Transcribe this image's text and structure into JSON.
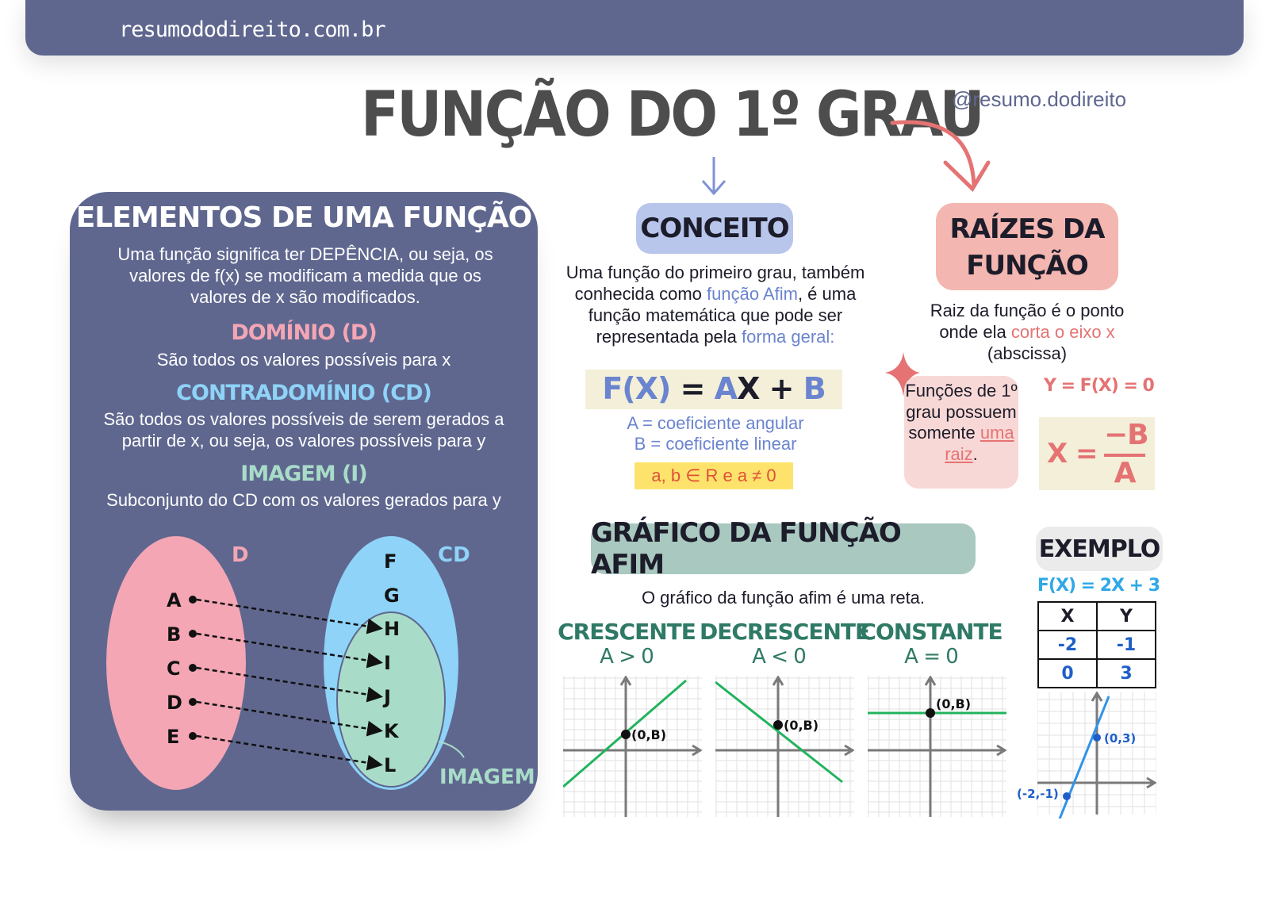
{
  "header": {
    "site": "resumododireito.com.br",
    "title": "FUNÇÃO DO 1º GRAU",
    "handle": "@resumo.dodireito"
  },
  "elementos": {
    "title": "ELEMENTOS DE UMA FUNÇÃO",
    "intro": "Uma função significa ter DEPÊNCIA, ou seja, os valores de f(x) se modificam a medida que os valores de x são modificados.",
    "dominio_title": "DOMÍNIO (D)",
    "dominio_text": "São todos os valores possíveis para x",
    "contra_title": "CONTRADOMÍNIO (CD)",
    "contra_text": "São todos os valores possíveis de serem gerados a partir de x, ou seja, os valores possíveis para y",
    "imagem_title": "IMAGEM (I)",
    "imagem_text": "Subconjunto do CD com os valores gerados para y",
    "diagram": {
      "d_label": "D",
      "cd_label": "CD",
      "imagem_label": "IMAGEM",
      "domain_items": [
        "A",
        "B",
        "C",
        "D",
        "E"
      ],
      "codomain_extra": [
        "F",
        "G"
      ],
      "image_items": [
        "H",
        "I",
        "J",
        "K",
        "L"
      ]
    }
  },
  "conceito": {
    "title": "CONCEITO",
    "text1": "Uma função do primeiro grau, também conhecida como ",
    "highlight1": "função Afim",
    "text2": ", é uma função matemática que pode ser representada pela ",
    "highlight2": "forma geral:",
    "formula": {
      "fx": "F(X)",
      "eq": "=",
      "a": "A",
      "x": "X",
      "plus": "+",
      "b": "B"
    },
    "coef_a": "A = coeficiente angular",
    "coef_b": "B = coeficiente linear",
    "condition": "a, b ∈ R e a ≠ 0"
  },
  "raizes": {
    "title_line1": "RAÍZES DA",
    "title_line2": "FUNÇÃO",
    "text1": "Raiz da função é o ponto onde ela ",
    "highlight": "corta o eixo x",
    "text2": " (abscissa)",
    "note1": "Funções de 1º grau possuem somente ",
    "note_link": "uma raiz",
    "note_end": ".",
    "eq1": "Y = F(X) = 0",
    "eq2_lhs": "X =",
    "eq2_num": "−B",
    "eq2_den": "A"
  },
  "grafico": {
    "title": "GRÁFICO DA FUNÇÃO AFIM",
    "subtitle": "O gráfico da função afim é uma reta.",
    "cases": [
      {
        "name": "CRESCENTE",
        "cond": "A > 0",
        "point": "(0,B)",
        "slope": "positive"
      },
      {
        "name": "DECRESCENTE",
        "cond": "A < 0",
        "point": "(0,B)",
        "slope": "negative"
      },
      {
        "name": "CONSTANTE",
        "cond": "A = 0",
        "point": "(0,B)",
        "slope": "zero"
      }
    ]
  },
  "exemplo": {
    "title": "EXEMPLO",
    "function": "F(X) = 2X + 3",
    "headers": [
      "X",
      "Y"
    ],
    "rows": [
      [
        "-2",
        "-1"
      ],
      [
        "0",
        "3"
      ]
    ],
    "points": [
      "(0,3)",
      "(-2,-1)"
    ]
  },
  "colors": {
    "navy": "#5f678f",
    "pink": "#f4a6b4",
    "sky": "#8fd3f8",
    "mint": "#a8dcc8",
    "line_green": "#22b35e",
    "teal": "#2f7a66",
    "accent_blue": "#6b84cf",
    "accent_red": "#e57373",
    "example_blue": "#2f94e8"
  }
}
